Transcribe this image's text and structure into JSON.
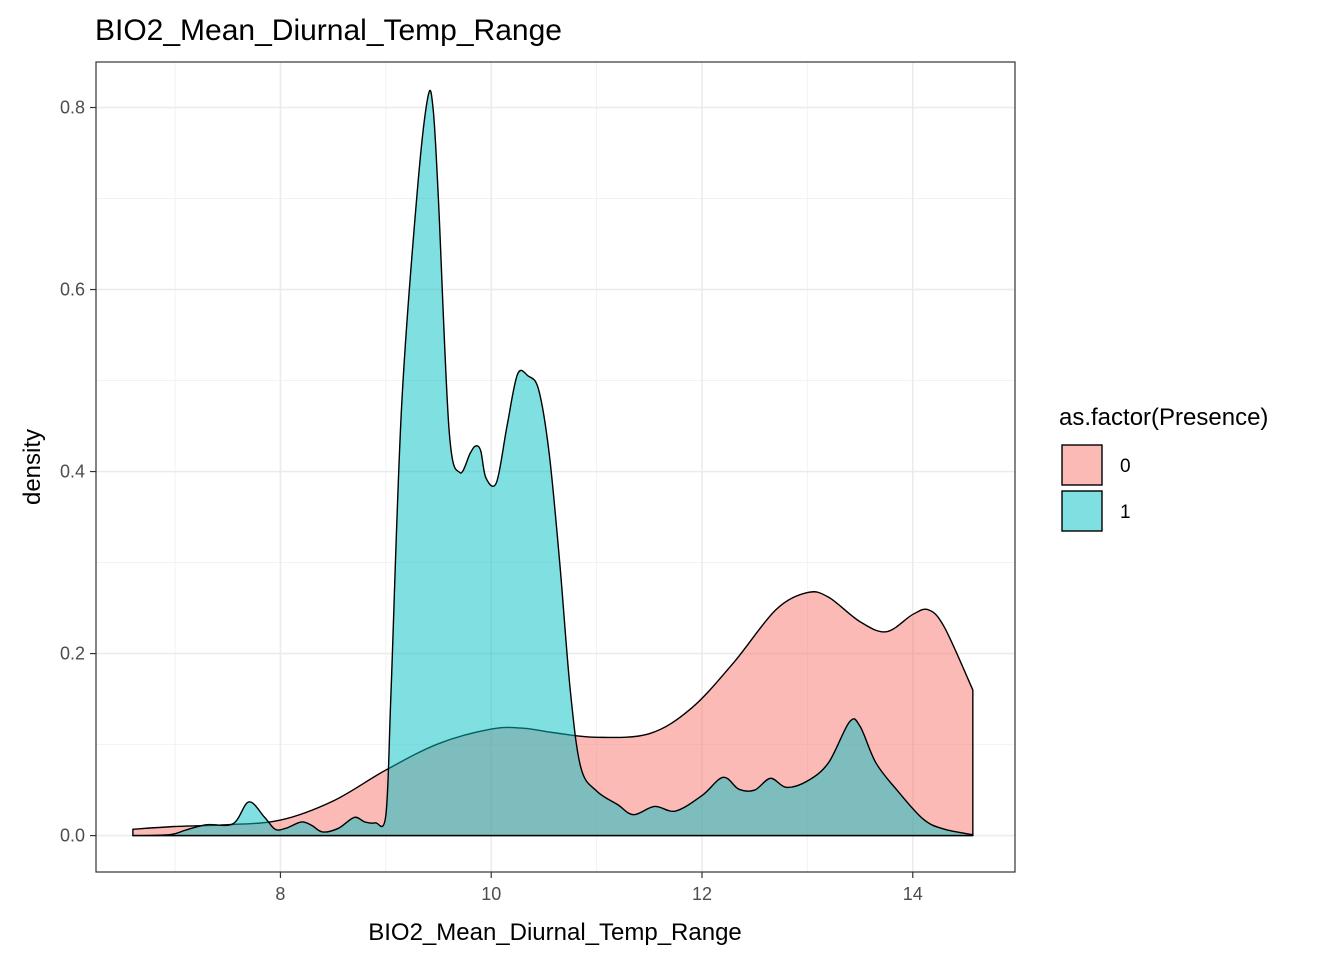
{
  "chart_data": {
    "type": "area",
    "subtype": "density",
    "title": "BIO2_Mean_Diurnal_Temp_Range",
    "xlabel": "BIO2_Mean_Diurnal_Temp_Range",
    "ylabel": "density",
    "xlim": [
      6.25,
      14.97
    ],
    "ylim": [
      -0.04,
      0.85
    ],
    "xticks": [
      8,
      10,
      12,
      14
    ],
    "xtick_labels": [
      "8",
      "10",
      "12",
      "14"
    ],
    "yticks": [
      0.0,
      0.2,
      0.4,
      0.6,
      0.8
    ],
    "ytick_labels": [
      "0.0",
      "0.2",
      "0.4",
      "0.6",
      "0.8"
    ],
    "grid": true,
    "legend": {
      "title": "as.factor(Presence)",
      "position": "right",
      "entries": [
        "0",
        "1"
      ]
    },
    "series": [
      {
        "name": "0",
        "color": "#F8766D",
        "x": [
          6.6,
          7.0,
          7.5,
          8.0,
          8.5,
          9.0,
          9.5,
          10.0,
          10.3,
          10.6,
          11.0,
          11.5,
          11.9,
          12.3,
          12.7,
          13.0,
          13.2,
          13.5,
          13.75,
          14.0,
          14.15,
          14.3,
          14.57
        ],
        "y": [
          0.007,
          0.01,
          0.012,
          0.017,
          0.038,
          0.072,
          0.101,
          0.117,
          0.118,
          0.113,
          0.108,
          0.112,
          0.14,
          0.19,
          0.248,
          0.267,
          0.262,
          0.235,
          0.224,
          0.243,
          0.248,
          0.229,
          0.16
        ]
      },
      {
        "name": "1",
        "color": "#00BFC4",
        "x": [
          6.6,
          6.95,
          7.1,
          7.3,
          7.55,
          7.7,
          7.85,
          7.95,
          8.05,
          8.2,
          8.3,
          8.4,
          8.55,
          8.7,
          8.8,
          8.9,
          9.0,
          9.05,
          9.15,
          9.3,
          9.4,
          9.45,
          9.5,
          9.6,
          9.7,
          9.8,
          9.85,
          9.9,
          9.95,
          10.05,
          10.15,
          10.25,
          10.35,
          10.45,
          10.55,
          10.65,
          10.75,
          10.85,
          11.0,
          11.2,
          11.35,
          11.55,
          11.75,
          12.0,
          12.2,
          12.35,
          12.5,
          12.65,
          12.8,
          13.0,
          13.2,
          13.4,
          13.5,
          13.65,
          13.85,
          14.1,
          14.3,
          14.57
        ],
        "y": [
          0.0,
          0.001,
          0.006,
          0.012,
          0.013,
          0.037,
          0.02,
          0.007,
          0.008,
          0.015,
          0.011,
          0.004,
          0.008,
          0.02,
          0.015,
          0.014,
          0.022,
          0.16,
          0.472,
          0.71,
          0.812,
          0.797,
          0.697,
          0.446,
          0.399,
          0.42,
          0.428,
          0.423,
          0.393,
          0.388,
          0.45,
          0.507,
          0.505,
          0.49,
          0.42,
          0.3,
          0.16,
          0.075,
          0.049,
          0.034,
          0.023,
          0.032,
          0.027,
          0.044,
          0.064,
          0.051,
          0.05,
          0.063,
          0.053,
          0.06,
          0.08,
          0.125,
          0.12,
          0.08,
          0.05,
          0.018,
          0.007,
          0.001
        ]
      }
    ]
  }
}
